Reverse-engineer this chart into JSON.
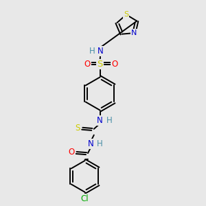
{
  "background_color": "#e8e8e8",
  "bond_color": "#000000",
  "atom_colors": {
    "N": "#0000cc",
    "H": "#4a8fa8",
    "O": "#ff0000",
    "S_sulfonyl": "#cccc00",
    "S_thio": "#cccc00",
    "S_thiazole": "#cccc00",
    "Cl": "#00aa00",
    "C": "#000000"
  },
  "figsize": [
    3.0,
    3.0
  ],
  "dpi": 100,
  "xlim": [
    0,
    10
  ],
  "ylim": [
    0,
    10
  ]
}
